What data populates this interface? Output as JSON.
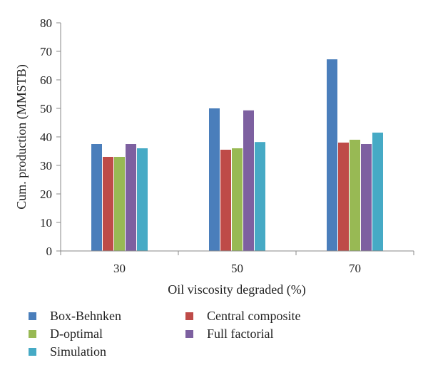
{
  "chart_data": {
    "type": "bar",
    "categories": [
      "30",
      "50",
      "70"
    ],
    "series": [
      {
        "name": "Box-Behnken",
        "color": "#4a7ebb",
        "values": [
          37.5,
          50.0,
          67.2
        ]
      },
      {
        "name": "Central composite",
        "color": "#be4b48",
        "values": [
          33.0,
          35.5,
          38.0
        ]
      },
      {
        "name": "D-optimal",
        "color": "#98b954",
        "values": [
          33.0,
          36.0,
          39.0
        ]
      },
      {
        "name": "Full factorial",
        "color": "#7d60a0",
        "values": [
          37.5,
          49.3,
          37.5
        ]
      },
      {
        "name": "Simulation",
        "color": "#46aac5",
        "values": [
          36.0,
          38.2,
          41.5
        ]
      }
    ],
    "xlabel": "Oil viscosity degraded (%)",
    "ylabel": "Cum. production (MMSTB)",
    "ylim": [
      0,
      80
    ],
    "yticks": [
      "0",
      "10",
      "20",
      "30",
      "40",
      "50",
      "60",
      "70",
      "80"
    ],
    "grid": false,
    "legend_position": "bottom"
  }
}
